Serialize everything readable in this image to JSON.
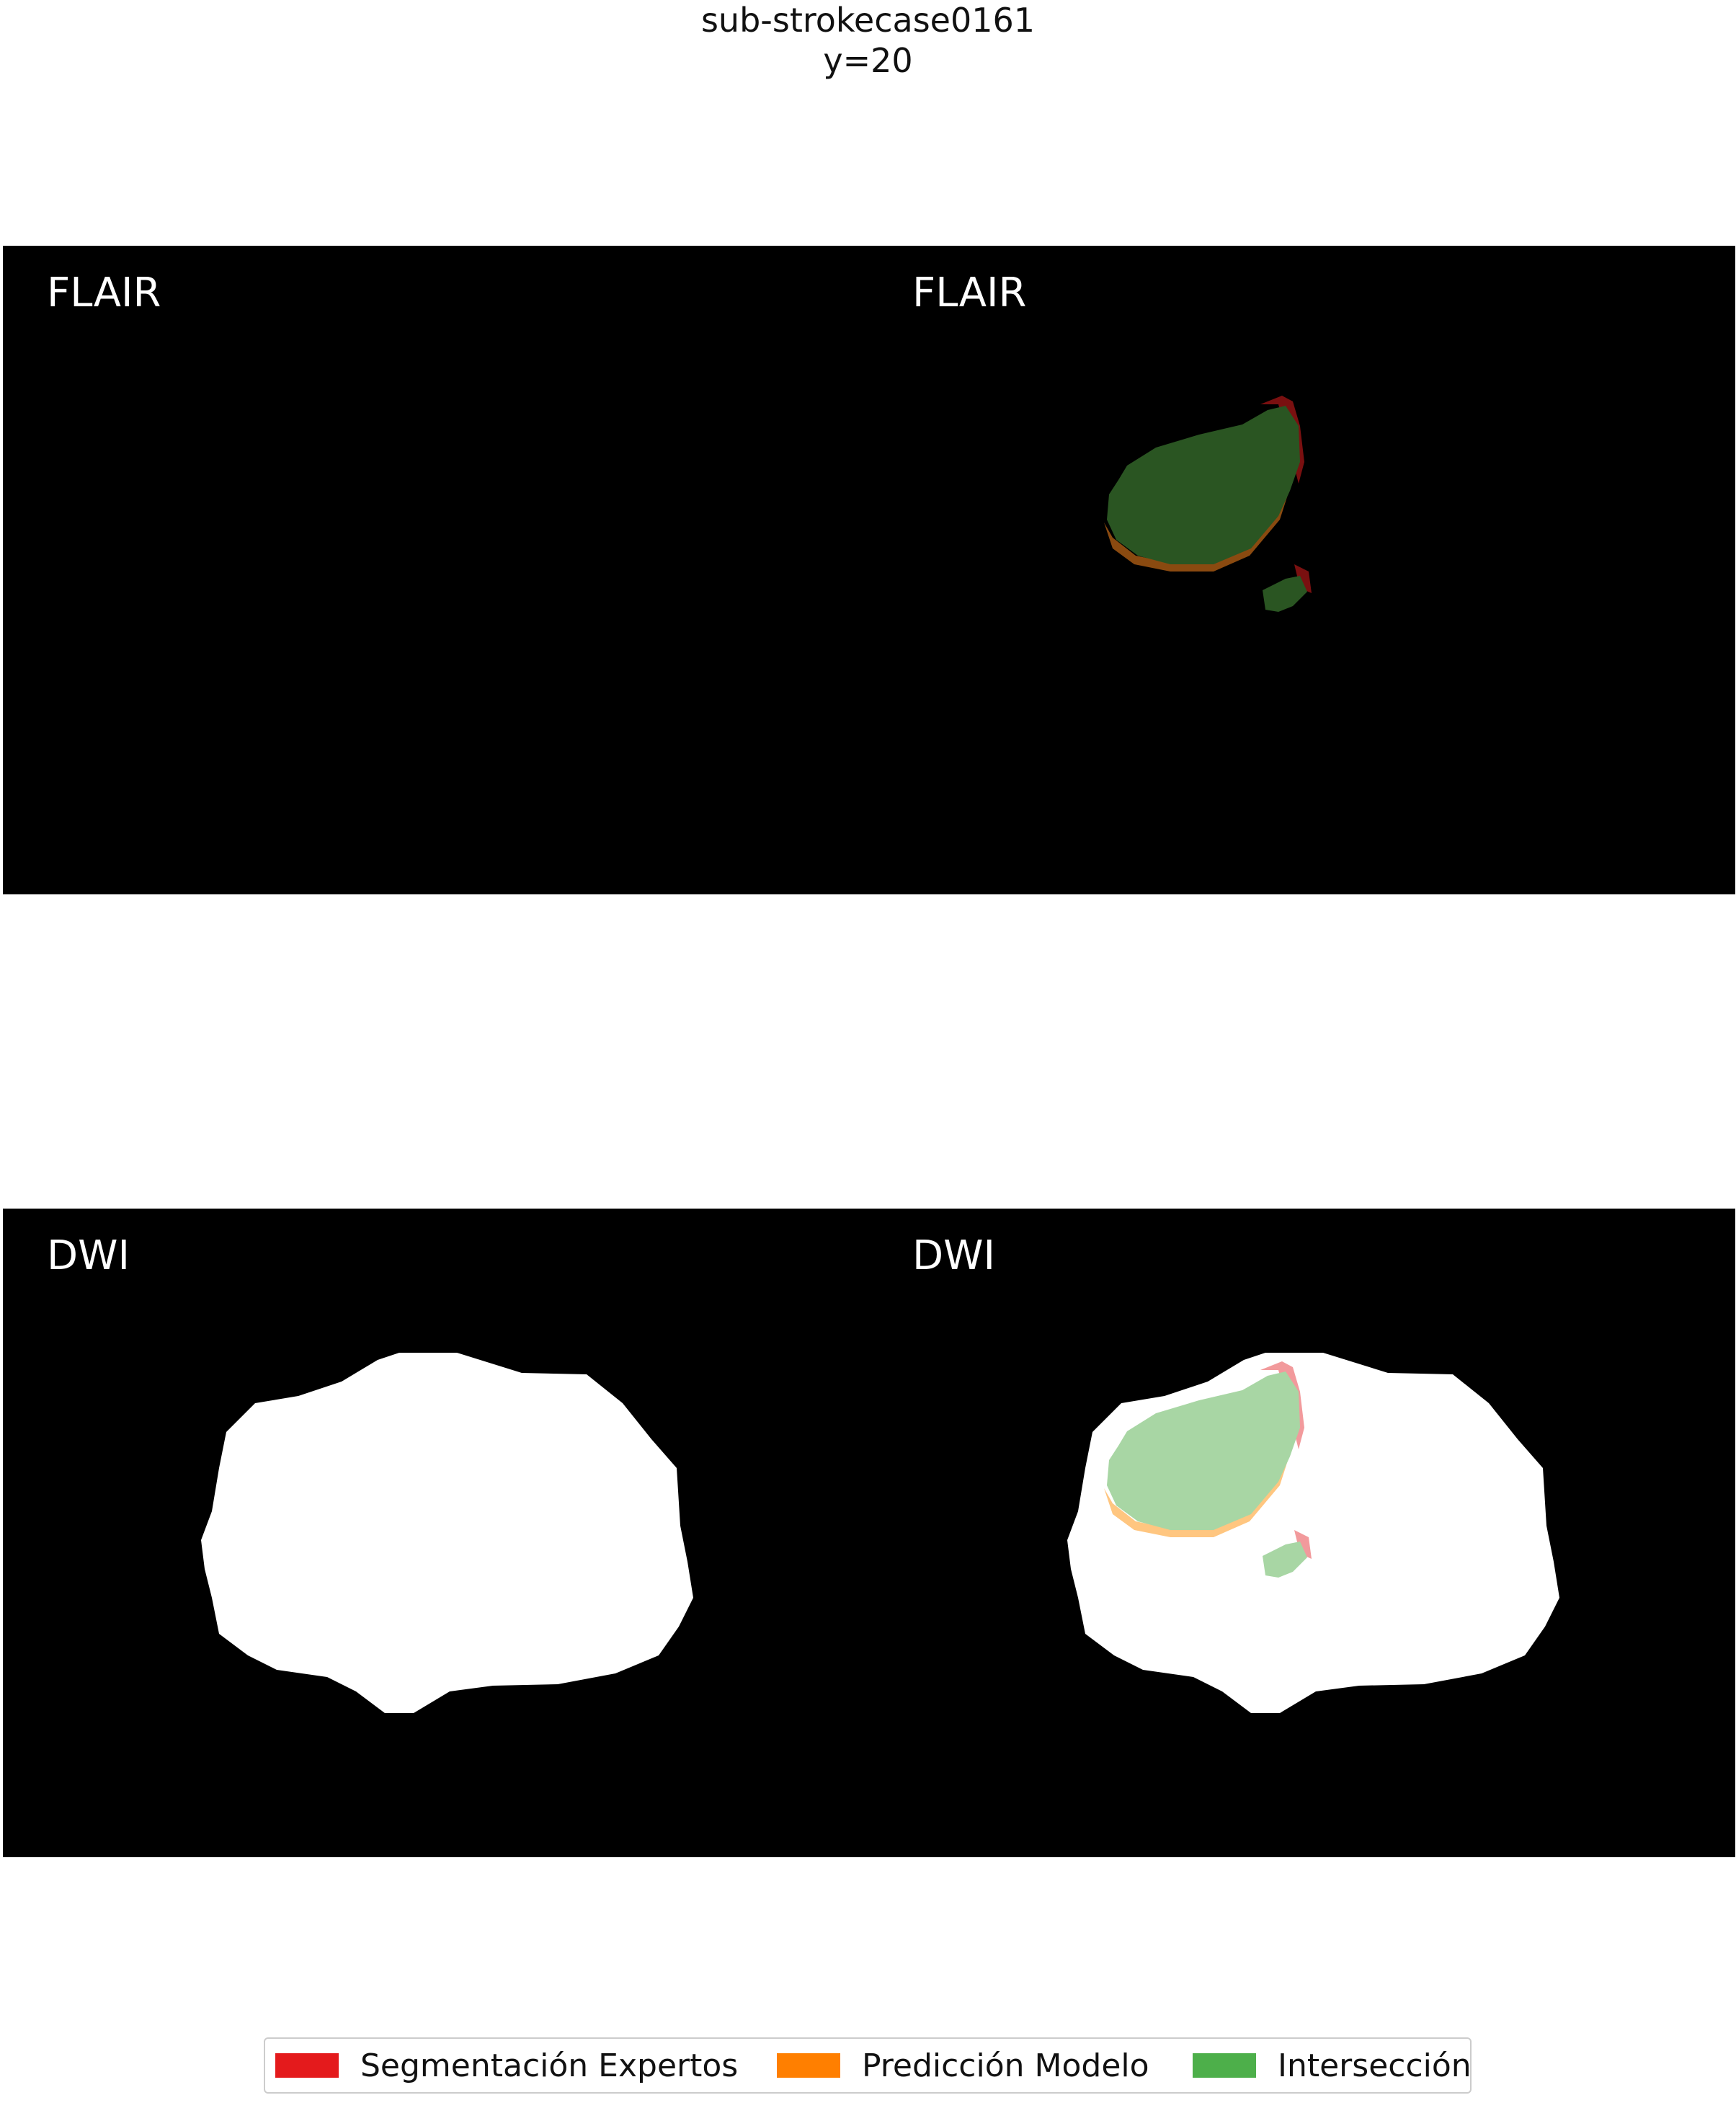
{
  "title": {
    "line1": "sub-strokecase0161",
    "line2": "y=20"
  },
  "panels": {
    "flair": {
      "left_label": "FLAIR",
      "right_label": "FLAIR"
    },
    "dwi": {
      "left_label": "DWI",
      "right_label": "DWI"
    }
  },
  "legend": {
    "items": [
      {
        "label": "Segmentación Expertos",
        "color": "#e41a1c"
      },
      {
        "label": "Predicción Modelo",
        "color": "#ff7f00"
      },
      {
        "label": "Intersección",
        "color": "#4daf4a"
      }
    ]
  },
  "colors": {
    "background": "#000000",
    "brain_mask": "#ffffff",
    "flair_intersection": "#2a5522",
    "flair_expert": "#7a1010",
    "flair_model": "#8a4a10",
    "dwi_intersection": "#a8d6a4",
    "dwi_expert": "#f29a9c",
    "dwi_model": "#ffc680"
  }
}
